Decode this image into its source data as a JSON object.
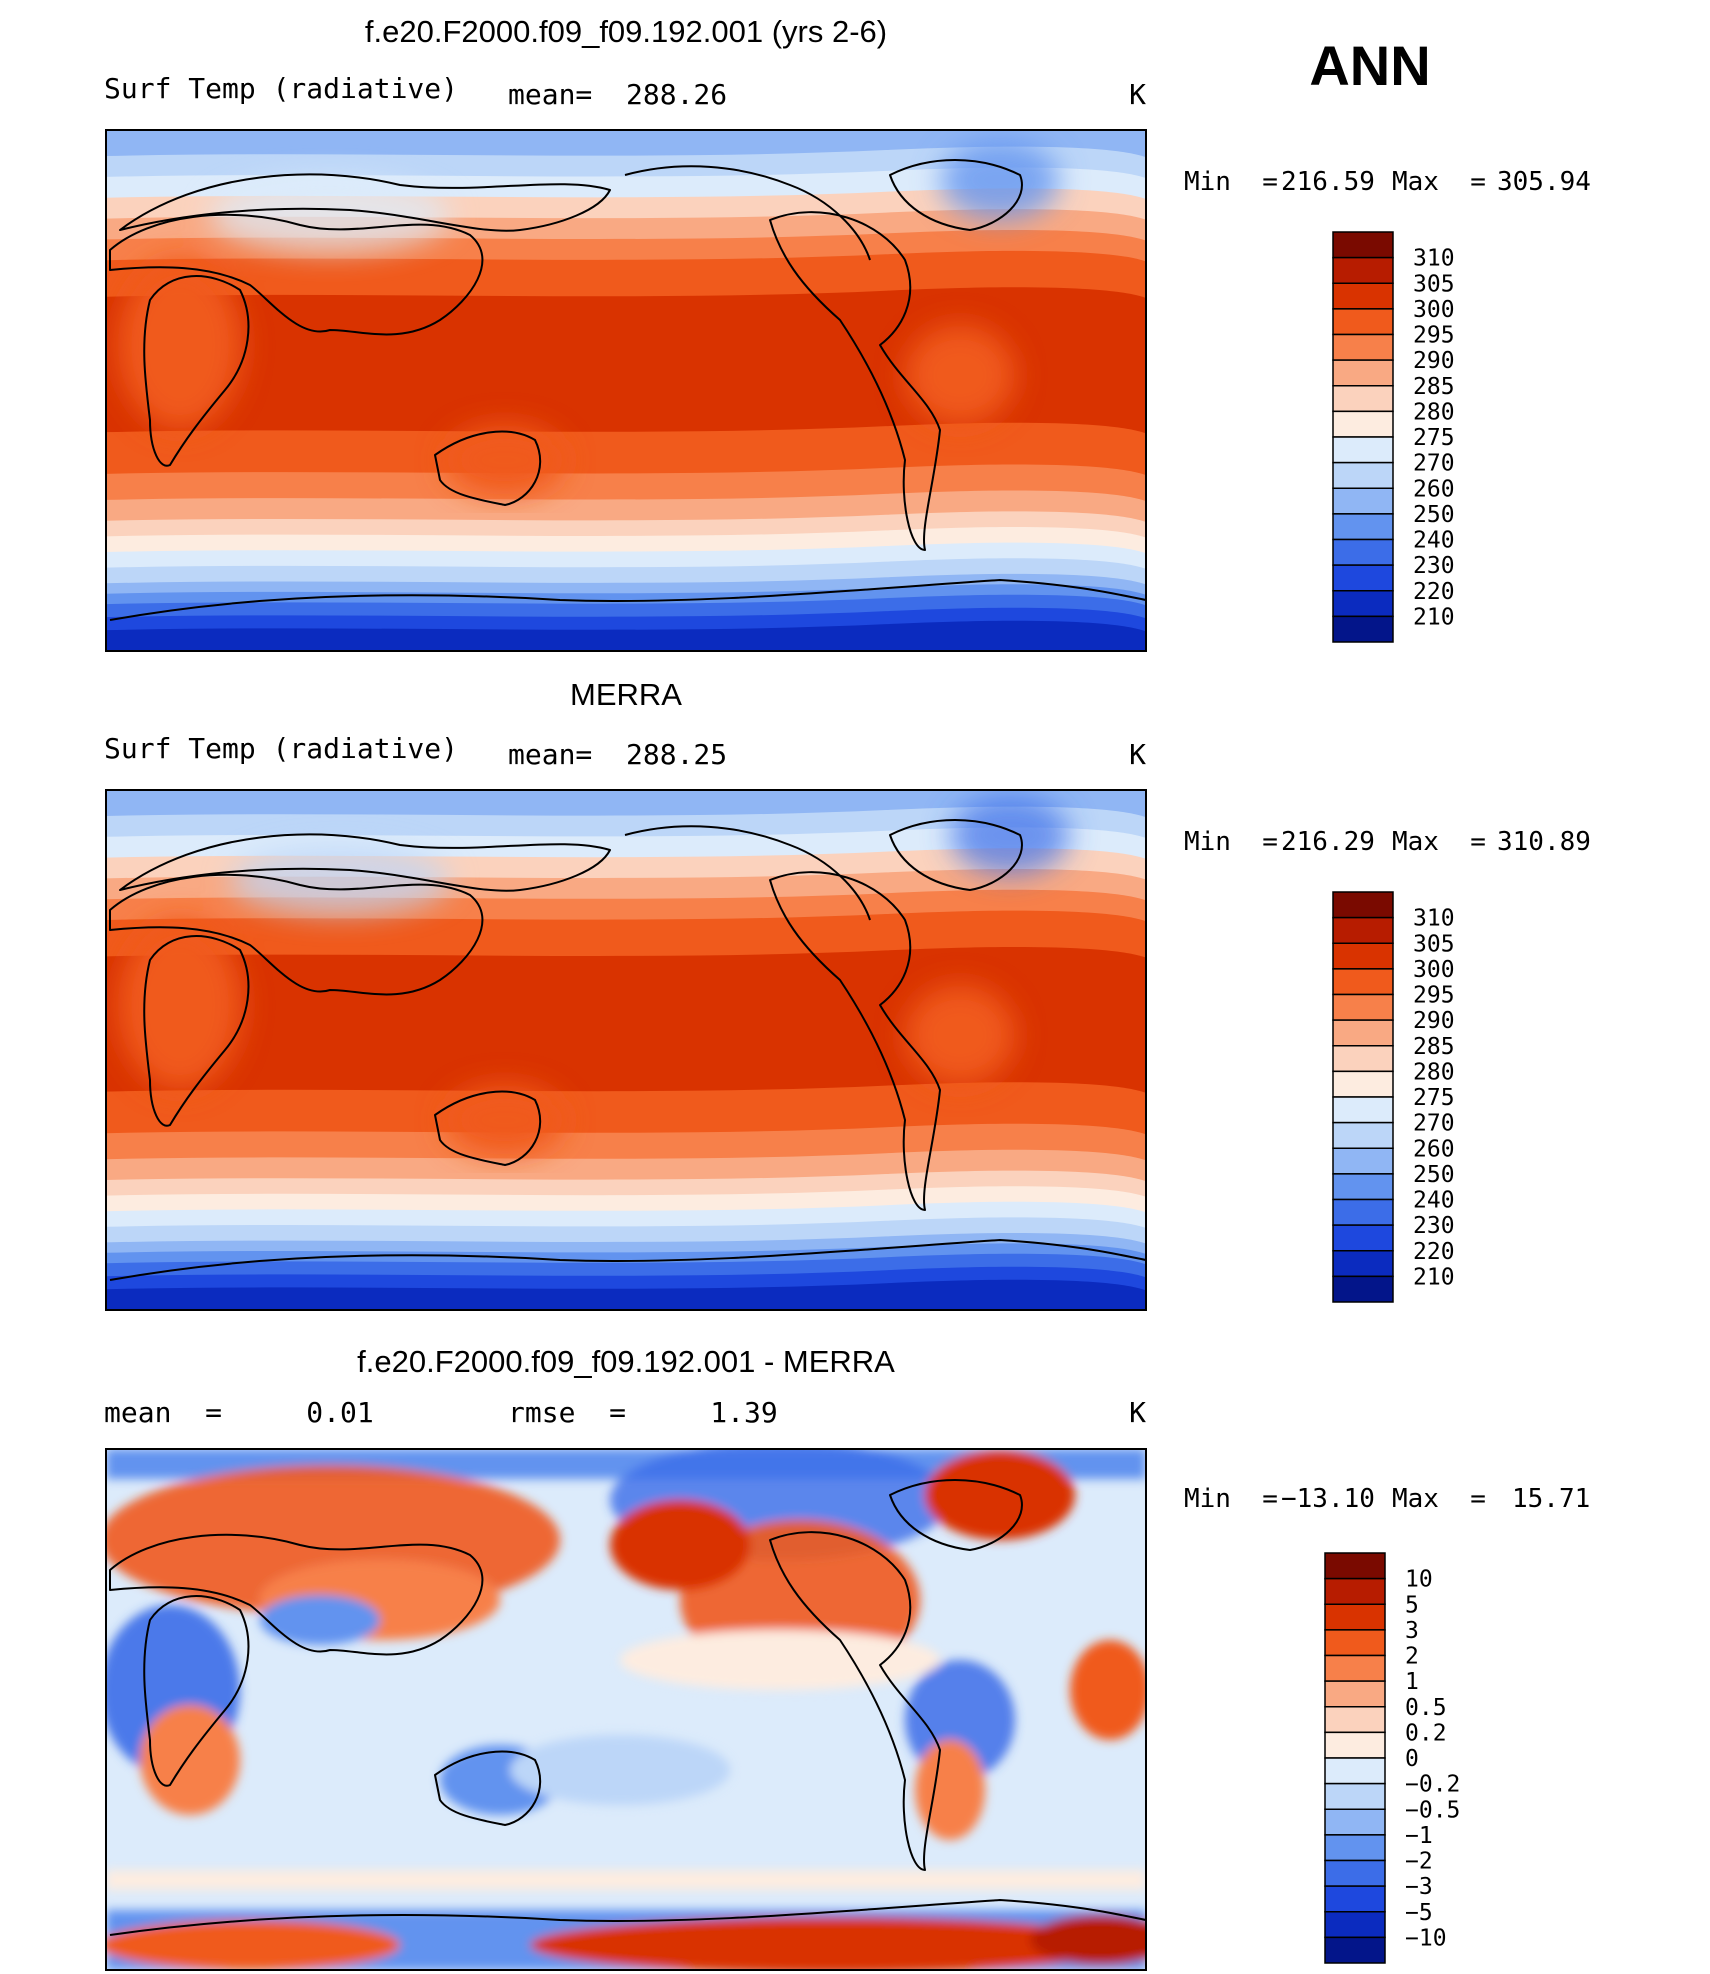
{
  "season": "ANN",
  "chart_data": [
    {
      "type": "heatmap",
      "title": "f.e20.F2000.f09_f09.192.001 (yrs 2-6)",
      "left_label": "Surf Temp (radiative)",
      "stat_text": "mean=  288.26",
      "units": "K",
      "stats": {
        "min": 216.59,
        "max": 305.94,
        "mean": 288.26
      },
      "minmax_text": {
        "min_label": "Min  =",
        "min_value": "216.59",
        "max_label": "Max  =",
        "max_value": "305.94"
      },
      "colorbar": {
        "levels": [
          "310",
          "305",
          "300",
          "295",
          "290",
          "285",
          "280",
          "275",
          "270",
          "260",
          "250",
          "240",
          "230",
          "220",
          "210"
        ],
        "colors": [
          "#7a0a00",
          "#b71c00",
          "#d93300",
          "#f05a1c",
          "#f7804a",
          "#f9a983",
          "#fbd2bd",
          "#fdece0",
          "#dcebfb",
          "#bcd6f8",
          "#90b6f4",
          "#6293ef",
          "#3c6de8",
          "#1e48de",
          "#0b2bbf",
          "#03158a"
        ]
      },
      "map_style": "full-field"
    },
    {
      "type": "heatmap",
      "title": "MERRA",
      "left_label": "Surf Temp (radiative)",
      "stat_text": "mean=  288.25",
      "units": "K",
      "stats": {
        "min": 216.29,
        "max": 310.89,
        "mean": 288.25
      },
      "minmax_text": {
        "min_label": "Min  =",
        "min_value": "216.29",
        "max_label": "Max  =",
        "max_value": "310.89"
      },
      "colorbar": {
        "levels": [
          "310",
          "305",
          "300",
          "295",
          "290",
          "285",
          "280",
          "275",
          "270",
          "260",
          "250",
          "240",
          "230",
          "220",
          "210"
        ],
        "colors": [
          "#7a0a00",
          "#b71c00",
          "#d93300",
          "#f05a1c",
          "#f7804a",
          "#f9a983",
          "#fbd2bd",
          "#fdece0",
          "#dcebfb",
          "#bcd6f8",
          "#90b6f4",
          "#6293ef",
          "#3c6de8",
          "#1e48de",
          "#0b2bbf",
          "#03158a"
        ]
      },
      "map_style": "full-field"
    },
    {
      "type": "heatmap",
      "title": "f.e20.F2000.f09_f09.192.001 - MERRA",
      "left_label": "mean  =     0.01",
      "stat_text": "rmse  =     1.39",
      "units": "K",
      "stats": {
        "min": -13.1,
        "max": 15.71,
        "mean": 0.01,
        "rmse": 1.39
      },
      "minmax_text": {
        "min_label": "Min  =",
        "min_value": "−13.10",
        "max_label": "Max  =",
        "max_value": "15.71"
      },
      "colorbar": {
        "levels": [
          "10",
          "5",
          "3",
          "2",
          "1",
          "0.5",
          "0.2",
          "0",
          "−0.2",
          "−0.5",
          "−1",
          "−2",
          "−3",
          "−5",
          "−10"
        ],
        "colors": [
          "#7a0a00",
          "#b71c00",
          "#d93300",
          "#f05a1c",
          "#f7804a",
          "#f9a983",
          "#fbd2bd",
          "#fdece0",
          "#dcebfb",
          "#bcd6f8",
          "#90b6f4",
          "#6293ef",
          "#3c6de8",
          "#1e48de",
          "#0b2bbf",
          "#03158a"
        ]
      },
      "map_style": "difference"
    }
  ]
}
